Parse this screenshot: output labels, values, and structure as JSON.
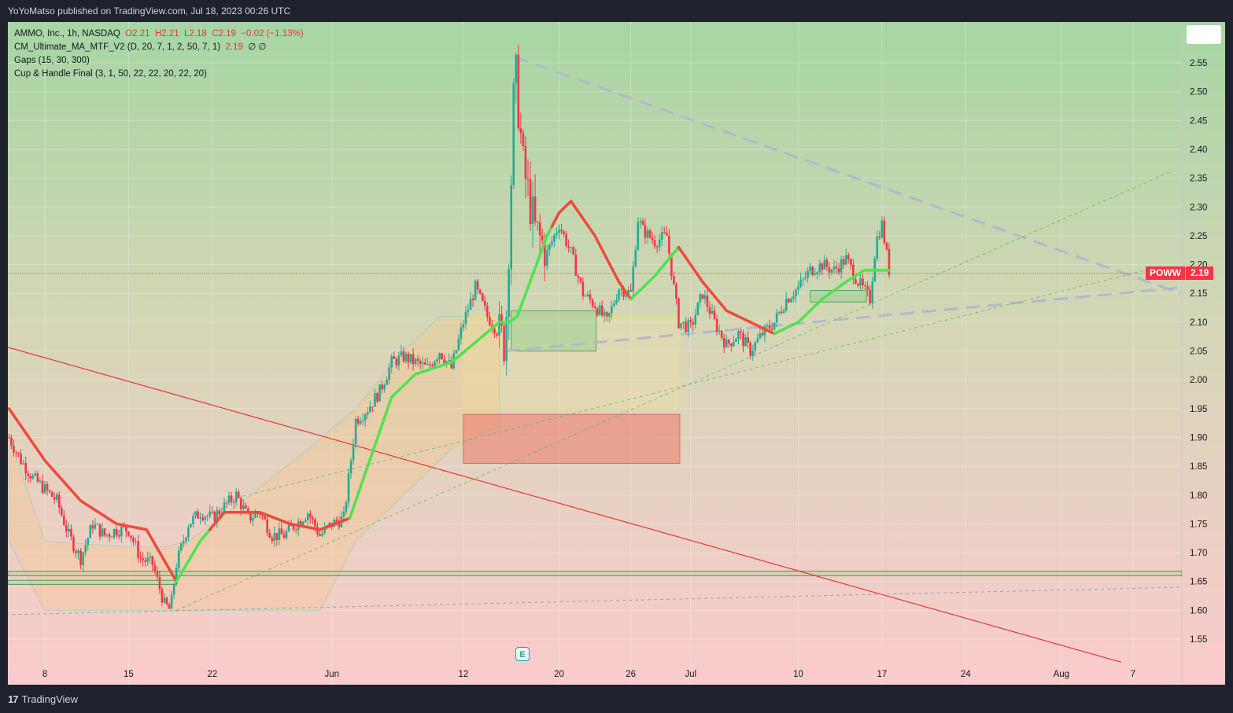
{
  "header": {
    "published": "YoYoMatso published on TradingView.com, Jul 18, 2023 00:26 UTC"
  },
  "footer": {
    "brand": "TradingView",
    "logo": "17"
  },
  "legend": {
    "symbol": "AMMO, Inc., 1h, NASDAQ",
    "open": "O2.21",
    "high": "H2.21",
    "low": "L2.18",
    "close": "C2.19",
    "change": "−0.02 (−1.13%)",
    "indicators": [
      "CM_Ultimate_MA_MTF_V2 (D, 20, 7, 1, 2, 50, 7, 1)",
      "Gaps (15, 30, 300)",
      "Cup & Handle Final (3, 1, 50, 22, 22, 20, 22, 20)"
    ],
    "ma_value": "2.19",
    "ma_extra": "∅ ∅"
  },
  "price_tag": {
    "symbol": "POWW",
    "price": "2.19"
  },
  "earnings_marker": "E",
  "chart_data": {
    "type": "candlestick",
    "y_ticks": [
      "2.55",
      "2.50",
      "2.45",
      "2.40",
      "2.35",
      "2.30",
      "2.25",
      "2.20",
      "2.15",
      "2.10",
      "2.05",
      "2.00",
      "1.95",
      "1.90",
      "1.85",
      "1.80",
      "1.75",
      "1.70",
      "1.65",
      "1.60",
      "1.55"
    ],
    "x_ticks": [
      {
        "label": "8",
        "day": 8
      },
      {
        "label": "15",
        "day": 15
      },
      {
        "label": "22",
        "day": 22
      },
      {
        "label": "Jun",
        "day": 32
      },
      {
        "label": "12",
        "day": 43
      },
      {
        "label": "20",
        "day": 51
      },
      {
        "label": "26",
        "day": 57
      },
      {
        "label": "Jul",
        "day": 62
      },
      {
        "label": "10",
        "day": 71
      },
      {
        "label": "17",
        "day": 78
      },
      {
        "label": "24",
        "day": 85
      },
      {
        "label": "Aug",
        "day": 93
      },
      {
        "label": "7",
        "day": 99
      }
    ],
    "ylim": [
      1.515,
      2.585
    ],
    "last_price": 2.19,
    "anchors": [
      [
        5,
        1.9
      ],
      [
        6,
        1.86
      ],
      [
        7,
        1.83
      ],
      [
        8,
        1.81
      ],
      [
        9,
        1.79
      ],
      [
        10,
        1.73
      ],
      [
        11,
        1.69
      ],
      [
        12,
        1.75
      ],
      [
        13,
        1.73
      ],
      [
        14,
        1.74
      ],
      [
        15,
        1.74
      ],
      [
        16,
        1.69
      ],
      [
        17,
        1.68
      ],
      [
        18,
        1.61
      ],
      [
        18.5,
        1.6
      ],
      [
        19,
        1.68
      ],
      [
        20,
        1.75
      ],
      [
        21,
        1.77
      ],
      [
        22,
        1.76
      ],
      [
        23,
        1.78
      ],
      [
        24,
        1.8
      ],
      [
        25,
        1.76
      ],
      [
        26,
        1.77
      ],
      [
        27,
        1.73
      ],
      [
        28,
        1.73
      ],
      [
        29,
        1.75
      ],
      [
        30,
        1.77
      ],
      [
        31,
        1.73
      ],
      [
        32,
        1.75
      ],
      [
        33,
        1.76
      ],
      [
        34,
        1.93
      ],
      [
        35,
        1.95
      ],
      [
        36,
        1.98
      ],
      [
        37,
        2.03
      ],
      [
        38,
        2.04
      ],
      [
        39,
        2.03
      ],
      [
        40,
        2.02
      ],
      [
        41,
        2.05
      ],
      [
        42,
        2.02
      ],
      [
        43,
        2.1
      ],
      [
        44,
        2.16
      ],
      [
        45,
        2.11
      ],
      [
        46,
        2.08
      ],
      [
        46.5,
        2.06
      ],
      [
        47,
        2.35
      ],
      [
        47.3,
        2.55
      ],
      [
        48,
        2.37
      ],
      [
        49,
        2.26
      ],
      [
        50,
        2.22
      ],
      [
        51,
        2.27
      ],
      [
        52,
        2.22
      ],
      [
        53,
        2.15
      ],
      [
        54,
        2.13
      ],
      [
        55,
        2.1
      ],
      [
        56,
        2.16
      ],
      [
        57,
        2.15
      ],
      [
        57.6,
        2.28
      ],
      [
        58,
        2.26
      ],
      [
        59,
        2.24
      ],
      [
        60,
        2.25
      ],
      [
        61,
        2.1
      ],
      [
        62,
        2.09
      ],
      [
        63,
        2.15
      ],
      [
        64,
        2.1
      ],
      [
        65,
        2.06
      ],
      [
        66,
        2.08
      ],
      [
        67,
        2.05
      ],
      [
        68,
        2.08
      ],
      [
        69,
        2.1
      ],
      [
        70,
        2.14
      ],
      [
        71,
        2.16
      ],
      [
        72,
        2.19
      ],
      [
        73,
        2.2
      ],
      [
        74,
        2.19
      ],
      [
        75,
        2.21
      ],
      [
        76,
        2.17
      ],
      [
        77,
        2.14
      ],
      [
        77.5,
        2.24
      ],
      [
        78,
        2.27
      ],
      [
        78.6,
        2.19
      ]
    ],
    "ma_anchors": [
      [
        5,
        1.95
      ],
      [
        8,
        1.86
      ],
      [
        11,
        1.79
      ],
      [
        14,
        1.75
      ],
      [
        16.5,
        1.74
      ],
      [
        19,
        1.65
      ],
      [
        21,
        1.72
      ],
      [
        23,
        1.77
      ],
      [
        26,
        1.77
      ],
      [
        28.5,
        1.75
      ],
      [
        31,
        1.74
      ],
      [
        33.5,
        1.76
      ],
      [
        35,
        1.85
      ],
      [
        37,
        1.97
      ],
      [
        39,
        2.01
      ],
      [
        42,
        2.03
      ],
      [
        46,
        2.1
      ],
      [
        46.8,
        2.1
      ],
      [
        47.5,
        2.11
      ],
      [
        50,
        2.25
      ],
      [
        51,
        2.29
      ],
      [
        52,
        2.31
      ],
      [
        54,
        2.25
      ],
      [
        56,
        2.17
      ],
      [
        57,
        2.14
      ],
      [
        59,
        2.18
      ],
      [
        61,
        2.23
      ],
      [
        63,
        2.17
      ],
      [
        65,
        2.12
      ],
      [
        67,
        2.1
      ],
      [
        69,
        2.08
      ],
      [
        71,
        2.1
      ],
      [
        73,
        2.14
      ],
      [
        75,
        2.17
      ],
      [
        76.5,
        2.19
      ],
      [
        78,
        2.19
      ],
      [
        78.6,
        2.19
      ]
    ],
    "ma_green_ranges": [
      [
        19,
        21.8
      ],
      [
        33.5,
        50.4
      ],
      [
        57,
        61
      ],
      [
        69,
        78.6
      ]
    ]
  }
}
